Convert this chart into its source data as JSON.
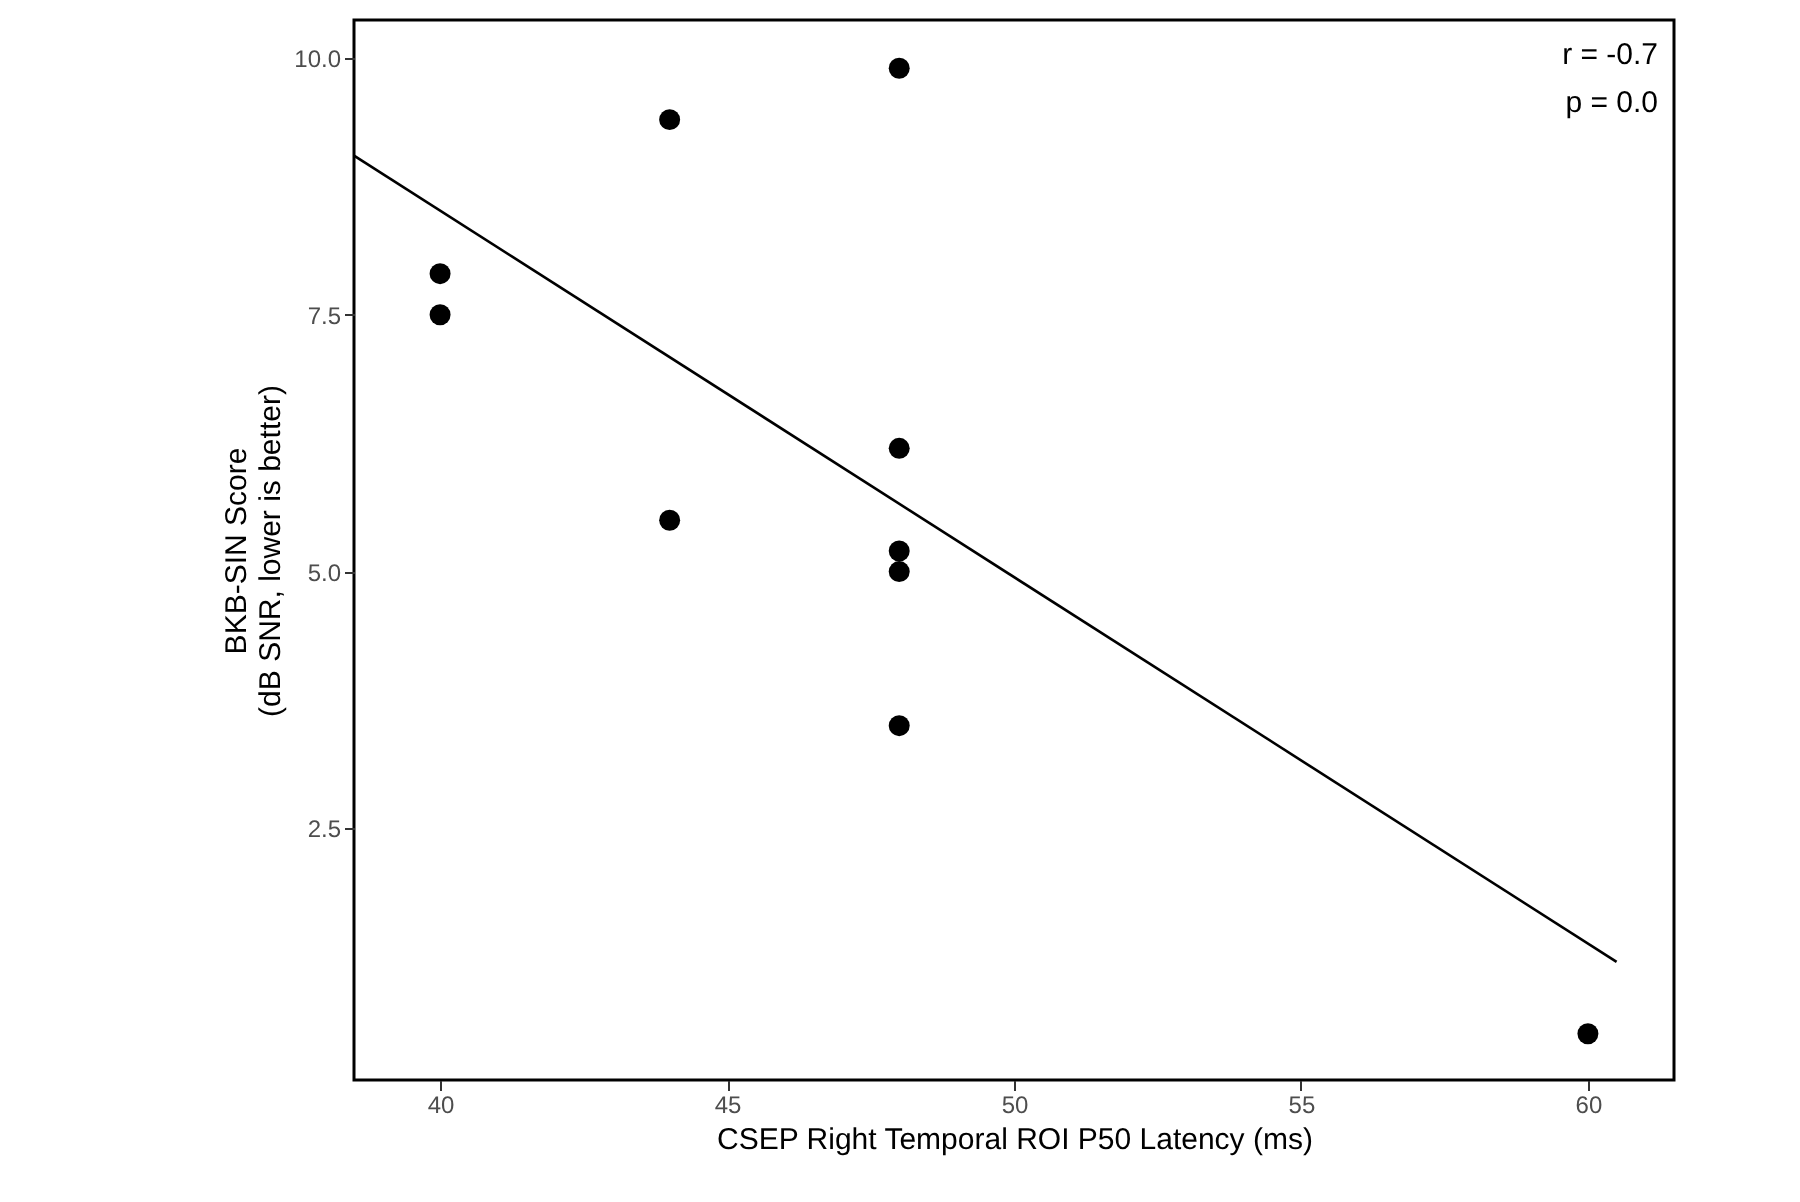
{
  "chart_data": {
    "type": "scatter",
    "xlabel": "CSEP Right Temporal ROI P50 Latency (ms)",
    "ylabel": "BKB-SIN Score\n(dB SNR, lower is better)",
    "x": [
      40,
      40,
      44,
      44,
      48,
      48,
      48,
      48,
      48,
      60
    ],
    "series": [
      {
        "color": "#000000",
        "marker": "circle",
        "values": [
          7.9,
          7.5,
          9.4,
          5.5,
          9.9,
          6.2,
          5.2,
          5.0,
          3.5,
          0.5
        ]
      },
      {
        "type": "line",
        "color": "#000000",
        "x": [
          38.5,
          60.5
        ],
        "values": [
          9.05,
          1.2
        ]
      }
    ],
    "xlim": [
      38.5,
      61.5
    ],
    "ylim": [
      0.05,
      10.37
    ],
    "xticks": [
      40,
      45,
      50,
      55,
      60
    ],
    "yticks": [
      {
        "value": 2.5,
        "label": "2.5"
      },
      {
        "value": 5,
        "label": "5.0"
      },
      {
        "value": 7.5,
        "label": "7.5"
      },
      {
        "value": 10,
        "label": "10.0"
      }
    ],
    "annotations": [
      "r = -0.7",
      "p = 0.0"
    ],
    "grid": false
  }
}
